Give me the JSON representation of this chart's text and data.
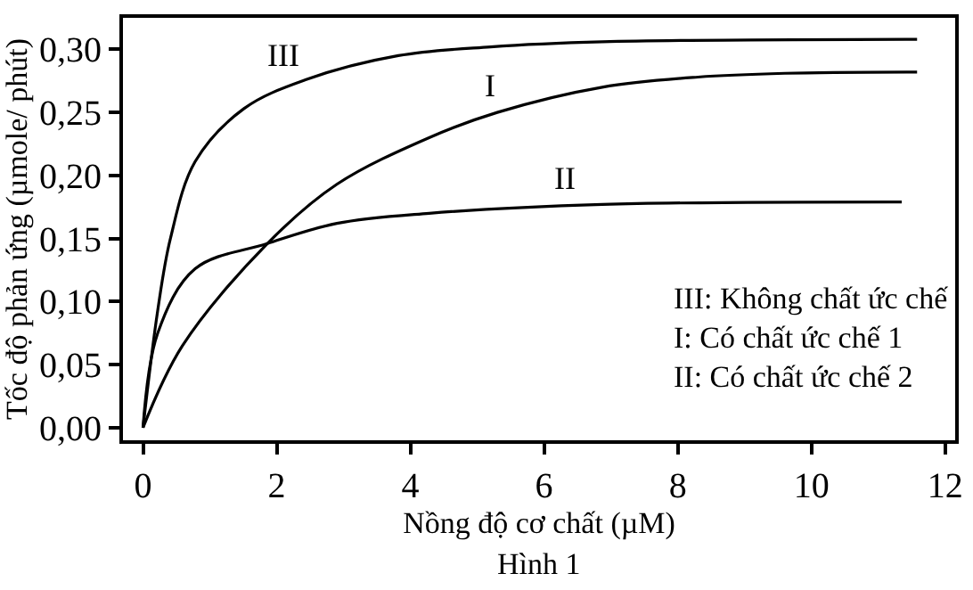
{
  "chart_data": {
    "type": "line",
    "xlabel": "Nồng độ cơ chất (µM)",
    "ylabel": "Tốc độ phản ứng (µmole/ phút)",
    "series": [
      {
        "name": "III",
        "color": "#000000",
        "x": [
          0,
          0.22,
          0.41,
          0.78,
          1.51,
          2.44,
          3.82,
          5.2,
          6.87,
          11.58
        ],
        "values": [
          0,
          0.093,
          0.15,
          0.211,
          0.253,
          0.276,
          0.295,
          0.302,
          0.306,
          0.308
        ]
      },
      {
        "name": "I",
        "color": "#000000",
        "x": [
          0,
          0.59,
          1.86,
          2.9,
          4.28,
          5.3,
          6.87,
          8.3,
          9.6,
          11.58
        ],
        "values": [
          0,
          0.065,
          0.146,
          0.193,
          0.23,
          0.25,
          0.27,
          0.278,
          0.281,
          0.282
        ]
      },
      {
        "name": "II",
        "color": "#000000",
        "x": [
          0,
          0.22,
          0.78,
          1.86,
          2.9,
          4.28,
          6.87,
          11.35
        ],
        "values": [
          0,
          0.075,
          0.126,
          0.146,
          0.162,
          0.17,
          0.177,
          0.179
        ]
      }
    ],
    "xlim": [
      -0.3,
      12.15
    ],
    "ylim": [
      -0.01,
      0.325
    ],
    "xticks": [
      0,
      2,
      4,
      6,
      8,
      10,
      12
    ],
    "yticks": [
      {
        "value": 0,
        "label": "0,00"
      },
      {
        "value": 0.05,
        "label": "0,05"
      },
      {
        "value": 0.1,
        "label": "0,10"
      },
      {
        "value": 0.15,
        "label": "0,15"
      },
      {
        "value": 0.2,
        "label": "0,20"
      },
      {
        "value": 0.25,
        "label": "0,25"
      },
      {
        "value": 0.3,
        "label": "0,30"
      }
    ],
    "annotations": [
      "III: Không chất ức chế\nI: Có chất ức chế 1\nII: Có chất ức chế 2",
      "Hình 1"
    ],
    "grid": false,
    "legend": false,
    "marker": "none",
    "line_style": "solid"
  }
}
